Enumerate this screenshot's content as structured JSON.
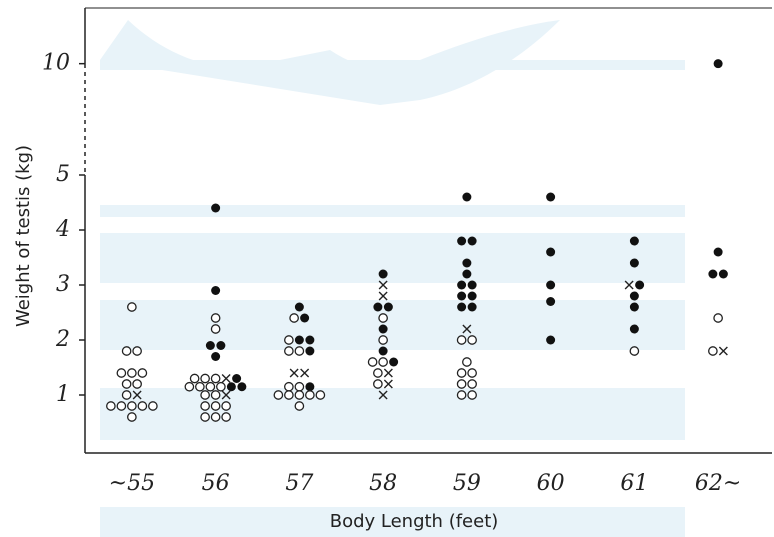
{
  "chart_data": {
    "type": "dot-strip",
    "y_label": "Weight of testis (kg)",
    "x_label": "Body Length (feet)",
    "categories": [
      "~55",
      "56",
      "57",
      "58",
      "59",
      "60",
      "61",
      "62~"
    ],
    "ylim": [
      0,
      12.5
    ],
    "y_break": 5,
    "yticks": [
      1,
      2,
      3,
      4,
      5,
      10
    ],
    "series": [
      {
        "marker": "open-circle",
        "color": "#222222",
        "values": [
          [
            2.6,
            1.8,
            1.8,
            1.4,
            1.4,
            1.4,
            1.2,
            1.2,
            1.0,
            0.8,
            0.8,
            0.8,
            0.8,
            0.8,
            0.6
          ],
          [
            2.4,
            2.2,
            1.3,
            1.3,
            1.3,
            1.15,
            1.15,
            1.15,
            1.15,
            1.0,
            1.0,
            0.8,
            0.8,
            0.8,
            0.6,
            0.6,
            0.6
          ],
          [
            2.4,
            2.0,
            1.8,
            1.8,
            1.15,
            1.15,
            1.0,
            1.0,
            1.0,
            1.0,
            1.0,
            0.8
          ],
          [
            2.4,
            2.0,
            1.6,
            1.6,
            1.4,
            1.2
          ],
          [
            2.0,
            2.0,
            1.6,
            1.4,
            1.4,
            1.2,
            1.2,
            1.0,
            1.0
          ],
          [],
          [
            1.8
          ],
          [
            2.4,
            1.8
          ]
        ]
      },
      {
        "marker": "cross",
        "color": "#222222",
        "values": [
          [
            1.0
          ],
          [
            1.3,
            1.0
          ],
          [
            1.4,
            1.4
          ],
          [
            3.0,
            2.8,
            1.4,
            1.2,
            1.0
          ],
          [
            2.2
          ],
          [],
          [
            3.0
          ],
          [
            1.8
          ]
        ]
      },
      {
        "marker": "filled-circle",
        "color": "#111111",
        "values": [
          [],
          [
            4.4,
            2.9,
            1.9,
            1.9,
            1.7,
            1.3,
            1.15,
            1.15
          ],
          [
            2.6,
            2.4,
            2.0,
            2.0,
            1.8,
            1.15
          ],
          [
            3.2,
            2.6,
            2.6,
            2.2,
            1.8,
            1.6
          ],
          [
            4.6,
            3.8,
            3.8,
            3.4,
            3.2,
            3.0,
            3.0,
            2.8,
            2.8,
            2.6,
            2.6
          ],
          [
            4.6,
            3.6,
            3.0,
            2.7,
            2.0
          ],
          [
            3.8,
            3.4,
            3.0,
            2.8,
            2.6,
            2.2
          ],
          [
            10,
            3.6,
            3.2,
            3.2
          ]
        ]
      }
    ]
  }
}
